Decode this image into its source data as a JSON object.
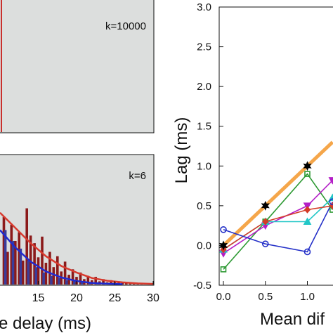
{
  "colors": {
    "panel_bg": "#dcdedd",
    "bar_red": "#8b1a1a",
    "bar_blue": "#3a3c9a",
    "curve_red": "#d83a2e",
    "curve_blue": "#1f2ad1",
    "ideal_line": "#f5a64a",
    "green": "#2e9a34",
    "magenta": "#b41fc7",
    "cyan": "#22c7c7",
    "red_series": "#d43b27",
    "blue_series": "#2430c8"
  },
  "chart_data": [
    {
      "type": "bar",
      "panel": "top-left",
      "annotation": "k=10000",
      "description_values": "single narrow peak at left edge",
      "x": [
        0
      ],
      "values": [
        1
      ]
    },
    {
      "type": "bar",
      "panel": "bottom-left",
      "annotation": "k=6",
      "xlabel": "e delay (ms)",
      "xticks": [
        "15",
        "20",
        "25",
        "30"
      ],
      "xlim": [
        10,
        30
      ],
      "ylim": [
        0,
        1
      ],
      "series": [
        {
          "color_key": "bar_red",
          "x": [
            10.5,
            11,
            11.5,
            12,
            12.5,
            13,
            13.5,
            14,
            14.5,
            15,
            15.5,
            16,
            16.5,
            17,
            17.5,
            18,
            18.5,
            19,
            19.5,
            20,
            20.5,
            21,
            21.5,
            22,
            22.5,
            23,
            23.5,
            24,
            24.5,
            25,
            25.5,
            26,
            26.5,
            27,
            27.5,
            28,
            28.5,
            29
          ],
          "values": [
            0.62,
            0.3,
            0.55,
            0.4,
            0.48,
            0.22,
            0.7,
            0.45,
            0.38,
            0.25,
            0.44,
            0.2,
            0.3,
            0.16,
            0.26,
            0.12,
            0.21,
            0.09,
            0.14,
            0.07,
            0.11,
            0.05,
            0.08,
            0.04,
            0.07,
            0.03,
            0.05,
            0.02,
            0.04,
            0.02,
            0.03,
            0.015,
            0.02,
            0.01,
            0.01,
            0.01,
            0.01,
            0.005
          ]
        },
        {
          "color_key": "bar_blue",
          "x": [
            10.7,
            11.7,
            12.7,
            13.7,
            14.7,
            15.7,
            16.7,
            17.7,
            18.7,
            19.7,
            20.7,
            21.7,
            22.7,
            23.7,
            24.7
          ],
          "values": [
            0.5,
            0.4,
            0.33,
            0.22,
            0.16,
            0.11,
            0.08,
            0.06,
            0.04,
            0.03,
            0.02,
            0.015,
            0.01,
            0.008,
            0.005
          ]
        },
        {
          "type": "line",
          "color_key": "curve_red",
          "x": [
            10,
            12,
            14,
            16,
            18,
            20,
            22,
            24,
            26,
            28,
            30
          ],
          "values": [
            0.66,
            0.52,
            0.38,
            0.26,
            0.17,
            0.11,
            0.06,
            0.035,
            0.02,
            0.01,
            0.006
          ]
        },
        {
          "type": "line",
          "color_key": "curve_blue",
          "x": [
            10,
            12,
            14,
            16,
            18,
            20,
            22,
            24,
            26
          ],
          "values": [
            0.5,
            0.34,
            0.21,
            0.12,
            0.065,
            0.032,
            0.015,
            0.007,
            0.003
          ]
        }
      ]
    },
    {
      "type": "line",
      "panel": "right",
      "ylabel": "Lag (ms)",
      "xlabel": "Mean dif",
      "ylim": [
        -0.5,
        3.0
      ],
      "yticks": [
        "-0.5",
        "0.0",
        "0.5",
        "1.0",
        "1.5",
        "2.0",
        "2.5",
        "3.0"
      ],
      "xticks": [
        "0.0",
        "0.5",
        "1.0"
      ],
      "xlim": [
        -0.05,
        1.3
      ],
      "series": [
        {
          "color_key": "ideal_line",
          "marker": "none",
          "x": [
            0.0,
            0.5,
            1.0,
            1.3
          ],
          "values": [
            0.0,
            0.5,
            1.0,
            1.3
          ]
        },
        {
          "color_key": "green",
          "marker": "square",
          "x": [
            0.0,
            0.5,
            1.0,
            1.3
          ],
          "values": [
            -0.3,
            0.3,
            0.9,
            0.45
          ]
        },
        {
          "color_key": "magenta",
          "marker": "triangle-down",
          "x": [
            0.0,
            0.5,
            1.0,
            1.3
          ],
          "values": [
            -0.1,
            0.25,
            0.5,
            0.82
          ]
        },
        {
          "color_key": "cyan",
          "marker": "triangle-up",
          "x": [
            0.0,
            0.5,
            1.0,
            1.3
          ],
          "values": [
            -0.05,
            0.3,
            0.3,
            0.6
          ]
        },
        {
          "color_key": "red_series",
          "marker": "diamond",
          "x": [
            0.0,
            0.5,
            1.0,
            1.3
          ],
          "values": [
            -0.05,
            0.3,
            0.45,
            0.5
          ]
        },
        {
          "color_key": "blue_series",
          "marker": "circle",
          "x": [
            0.0,
            0.5,
            1.0,
            1.3
          ],
          "values": [
            0.2,
            0.02,
            -0.08,
            0.55
          ]
        },
        {
          "color_key": "black",
          "marker": "star",
          "x": [
            0.0,
            0.5,
            1.0
          ],
          "values": [
            0.0,
            0.5,
            1.0
          ]
        }
      ]
    }
  ]
}
